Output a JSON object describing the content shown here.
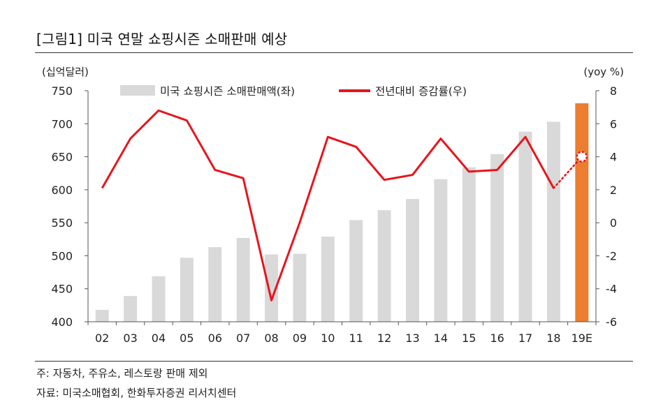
{
  "figure": {
    "title": "[그림1]     미국 연말 쇼핑시즌 소매판매 예상",
    "note": "주: 자동차, 주유소, 레스토랑 판매 제외",
    "source": "자료: 미국소매협회, 한화투자증권 리서치센터"
  },
  "chart_data": {
    "type": "bar",
    "categories": [
      "02",
      "03",
      "04",
      "05",
      "06",
      "07",
      "08",
      "09",
      "10",
      "11",
      "12",
      "13",
      "14",
      "15",
      "16",
      "17",
      "18",
      "19E"
    ],
    "left_axis": {
      "unit_label": "(십억달러)",
      "ylim": [
        400,
        750
      ],
      "ticks": [
        400,
        450,
        500,
        550,
        600,
        650,
        700,
        750
      ]
    },
    "right_axis": {
      "unit_label": "(yoy %)",
      "ylim": [
        -6,
        8
      ],
      "ticks": [
        -6,
        -4,
        -2,
        0,
        2,
        4,
        6,
        8
      ]
    },
    "series": [
      {
        "name": "미국 쇼핑시즌 소매판매액(좌)",
        "kind": "bar",
        "axis": "left",
        "color": "#d9d9d9",
        "highlight_color": "#ed7d31",
        "highlight_index": 17,
        "values": [
          418,
          439,
          469,
          497,
          513,
          527,
          502,
          503,
          529,
          554,
          569,
          586,
          616,
          634,
          654,
          688,
          703,
          731
        ]
      },
      {
        "name": "전년대비 증감률(우)",
        "kind": "line",
        "axis": "right",
        "color": "#e8141c",
        "forecast_from_index": 16,
        "values": [
          2.1,
          5.1,
          6.8,
          6.2,
          3.2,
          2.7,
          -4.7,
          0.0,
          5.2,
          4.6,
          2.6,
          2.9,
          5.1,
          3.1,
          3.2,
          5.2,
          2.1,
          4.0
        ]
      }
    ],
    "legend_position": "top",
    "grid": false
  }
}
